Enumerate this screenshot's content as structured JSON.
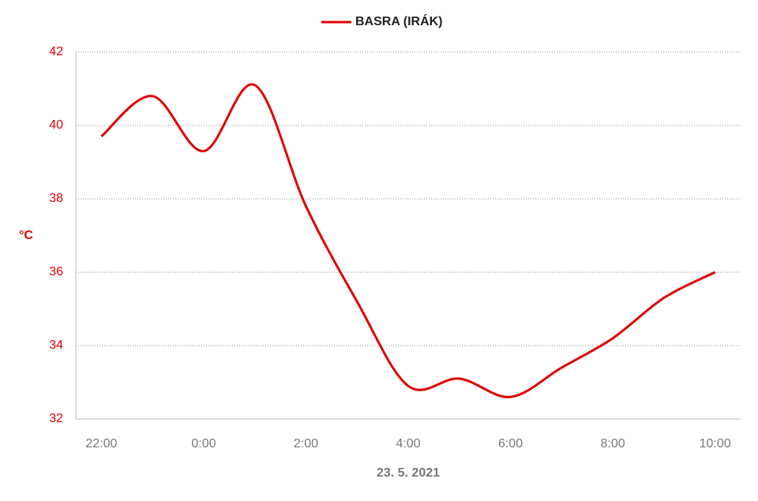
{
  "chart_data": {
    "type": "line",
    "x_label": "23. 5. 2021",
    "y_label": "°C",
    "categories": [
      "22:00",
      null,
      "0:00",
      null,
      "2:00",
      null,
      "4:00",
      null,
      "6:00",
      null,
      "8:00",
      null,
      "10:00"
    ],
    "series": [
      {
        "name": "BASRA (IRÁK)",
        "color": "#e00000",
        "values": [
          39.7,
          40.8,
          39.3,
          41.1,
          37.8,
          35.2,
          32.9,
          33.1,
          32.6,
          33.4,
          34.2,
          35.3,
          36.0
        ]
      }
    ],
    "ylim": [
      32,
      42
    ],
    "yticks": [
      32,
      34,
      36,
      38,
      40,
      42
    ],
    "grid": true,
    "legend": "top"
  }
}
